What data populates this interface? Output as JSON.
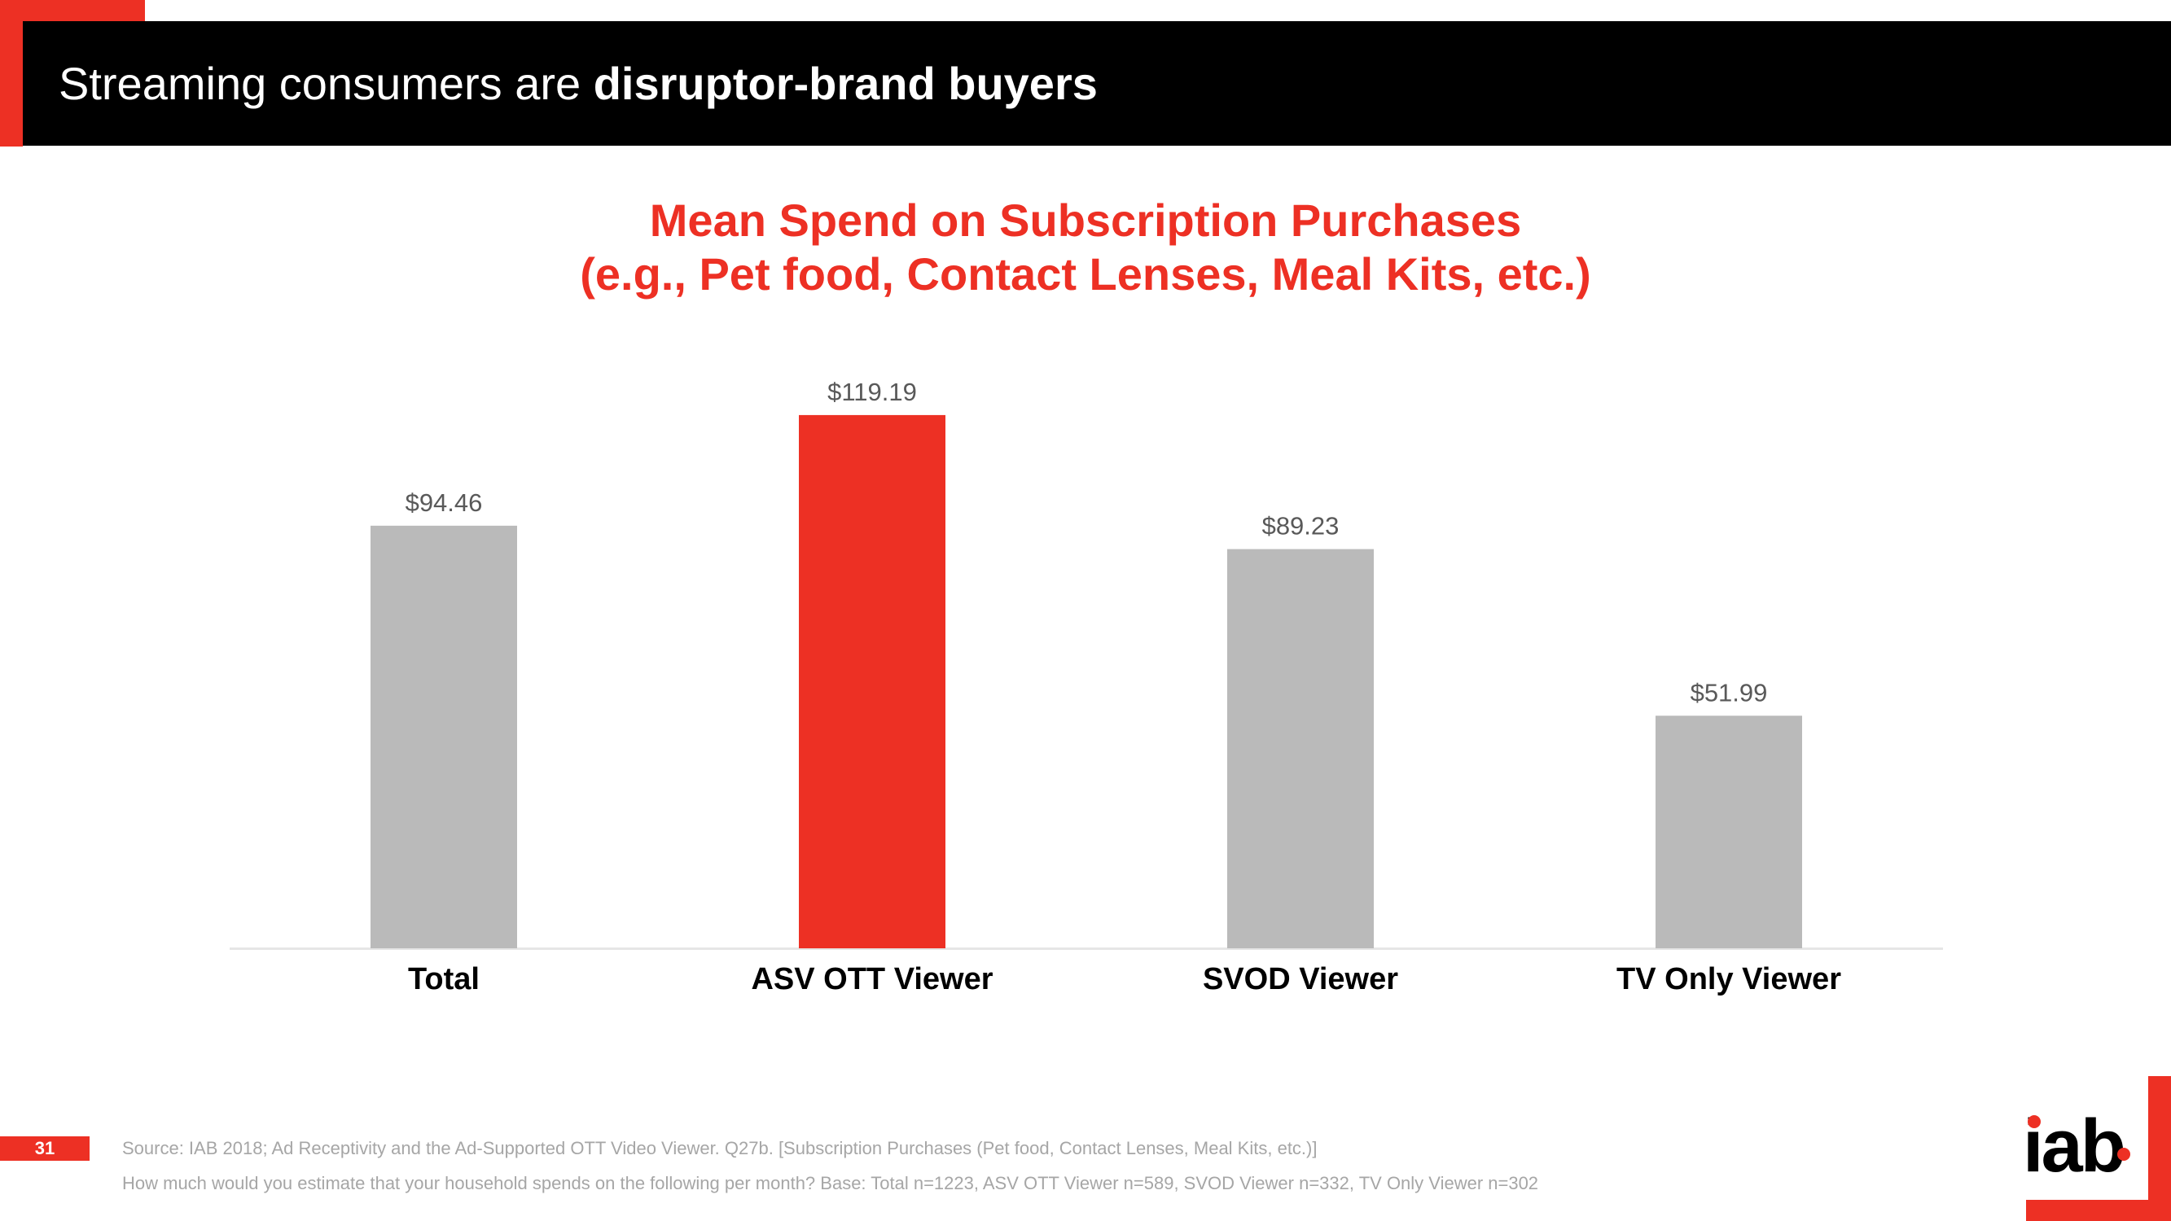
{
  "header": {
    "title_regular": "Streaming consumers are ",
    "title_bold": "disruptor-brand buyers"
  },
  "chart_data": {
    "type": "bar",
    "title": "Mean Spend on Subscription Purchases",
    "subtitle": "(e.g., Pet food, Contact Lenses, Meal Kits, etc.)",
    "categories": [
      "Total",
      "ASV OTT Viewer",
      "SVOD Viewer",
      "TV Only Viewer"
    ],
    "values": [
      94.46,
      119.19,
      89.23,
      51.99
    ],
    "value_labels": [
      "$94.46",
      "$119.19",
      "$89.23",
      "$51.99"
    ],
    "highlight_index": 1,
    "colors": {
      "default": "#bababa",
      "highlight": "#ed3024",
      "baseline": "#e6e6e6"
    },
    "xlabel": "",
    "ylabel": "",
    "ylim": [
      0,
      131
    ],
    "grid": false,
    "legend": "none"
  },
  "footer": {
    "page_number": "31",
    "source_line1": "Source: IAB 2018; Ad Receptivity and the Ad-Supported OTT Video Viewer.  Q27b. [Subscription Purchases (Pet food, Contact Lenses, Meal Kits, etc.)]",
    "source_line2": "How much would you estimate that your household spends on the following per month? Base: Total n=1223, ASV OTT Viewer n=589, SVOD Viewer n=332, TV Only Viewer n=302",
    "logo_text": "iab"
  }
}
